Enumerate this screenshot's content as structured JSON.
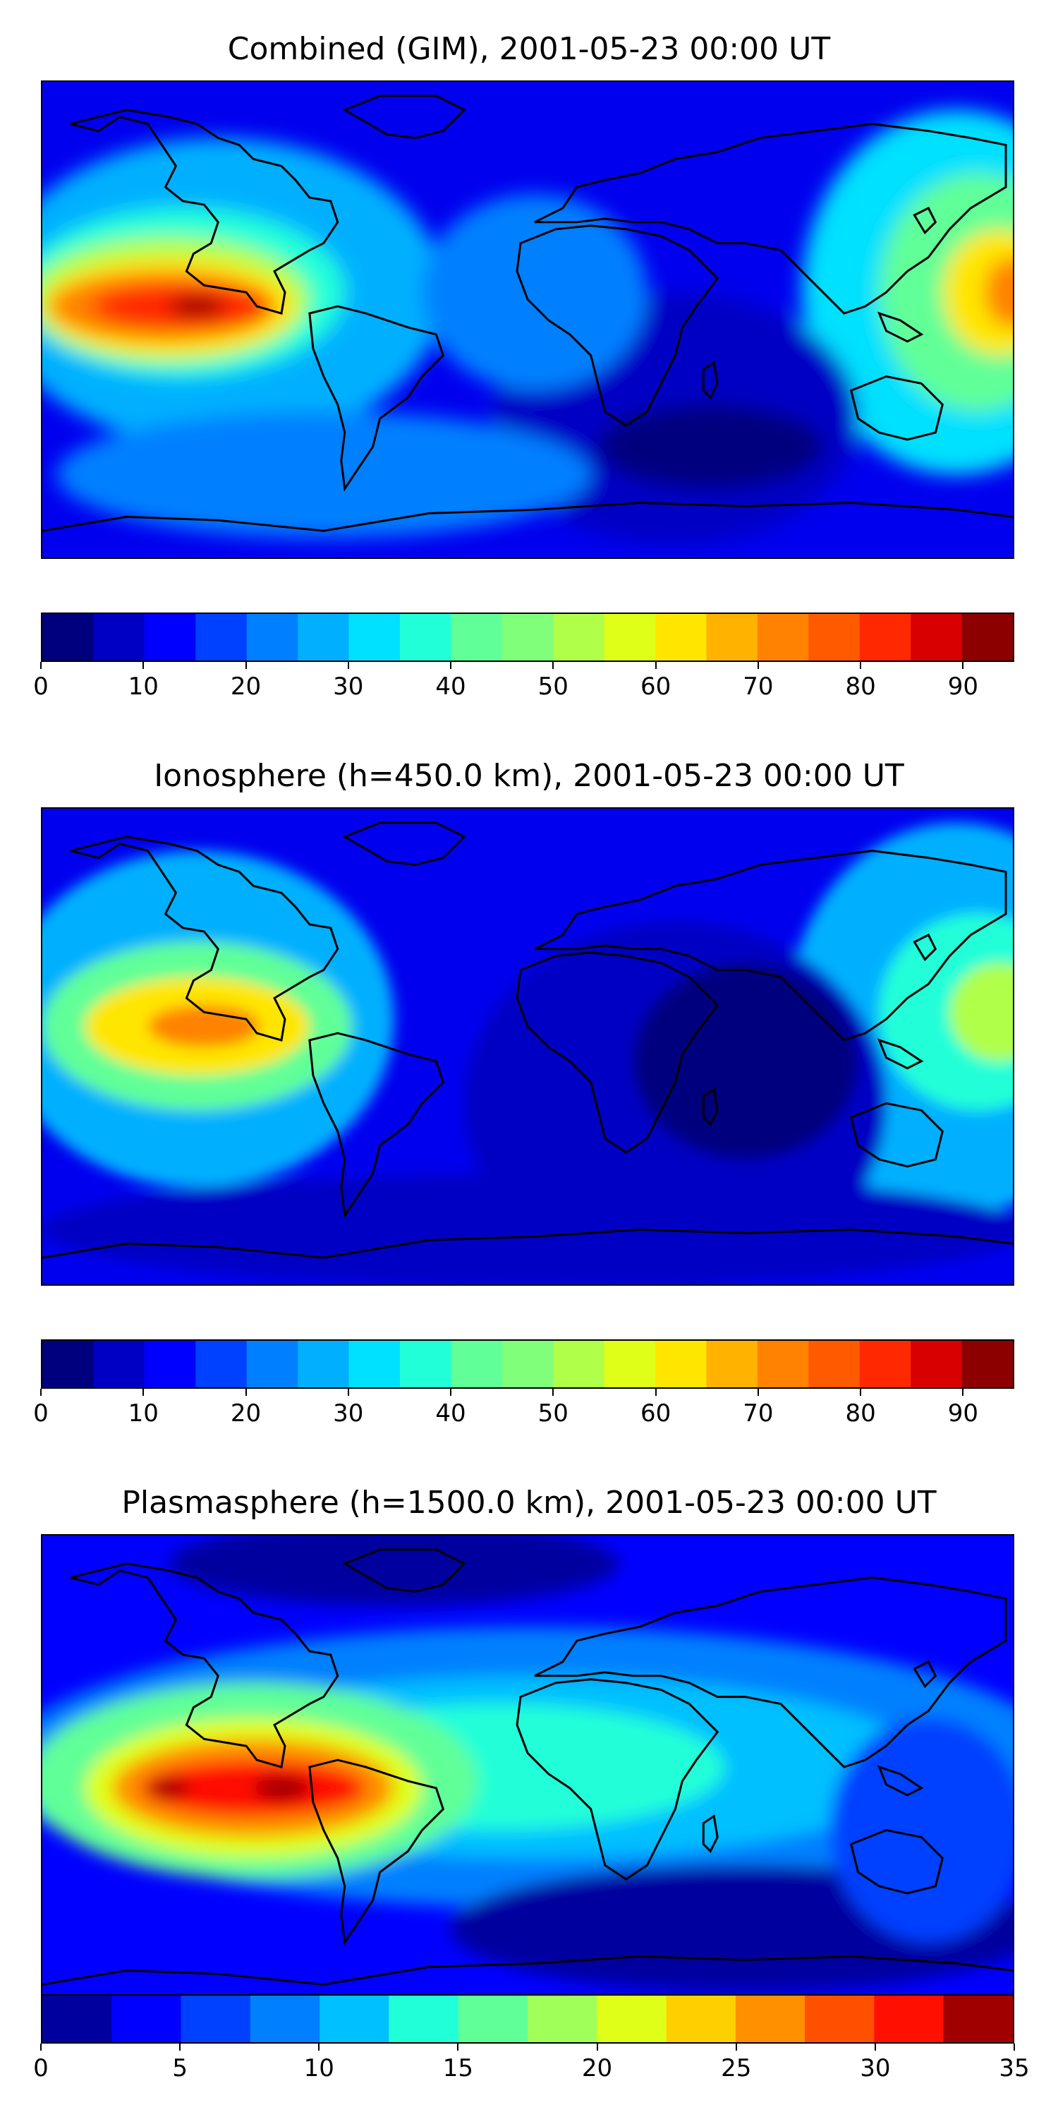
{
  "panels": [
    {
      "title": "Combined (GIM), 2001-05-23 00:00 UT",
      "colorbar": {
        "vmin": 0,
        "vmax": 95,
        "step": 5,
        "ticks": [
          "0",
          "10",
          "20",
          "30",
          "40",
          "50",
          "60",
          "70",
          "80",
          "90"
        ]
      },
      "colors": [
        "#00007f",
        "#0000c4",
        "#0000ff",
        "#0040ff",
        "#0080ff",
        "#00b0ff",
        "#00e0ff",
        "#20ffd8",
        "#60ff98",
        "#80ff7a",
        "#b0ff48",
        "#e0ff18",
        "#ffe600",
        "#ffb200",
        "#ff8200",
        "#ff5a00",
        "#ff2800",
        "#d80000",
        "#8c0000"
      ]
    },
    {
      "title": "Ionosphere  (h=450.0 km), 2001-05-23 00:00 UT",
      "colorbar": {
        "vmin": 0,
        "vmax": 95,
        "step": 5,
        "ticks": [
          "0",
          "10",
          "20",
          "30",
          "40",
          "50",
          "60",
          "70",
          "80",
          "90"
        ]
      },
      "colors": [
        "#00007f",
        "#0000c4",
        "#0000ff",
        "#0040ff",
        "#0080ff",
        "#00b0ff",
        "#00e0ff",
        "#20ffd8",
        "#60ff98",
        "#80ff7a",
        "#b0ff48",
        "#e0ff18",
        "#ffe600",
        "#ffb200",
        "#ff8200",
        "#ff5a00",
        "#ff2800",
        "#d80000",
        "#8c0000"
      ]
    },
    {
      "title": "Plasmasphere (h=1500.0 km), 2001-05-23 00:00 UT",
      "colorbar": {
        "vmin": 0,
        "vmax": 35,
        "step": 2.5,
        "ticks": [
          "0",
          "5",
          "10",
          "15",
          "20",
          "25",
          "30",
          "35"
        ]
      },
      "colors": [
        "#00009f",
        "#0000ff",
        "#0040ff",
        "#0080ff",
        "#00c0ff",
        "#20ffd8",
        "#60ff98",
        "#a0ff58",
        "#e0ff18",
        "#ffd000",
        "#ff9000",
        "#ff5000",
        "#ff1000",
        "#a00000"
      ]
    }
  ]
}
